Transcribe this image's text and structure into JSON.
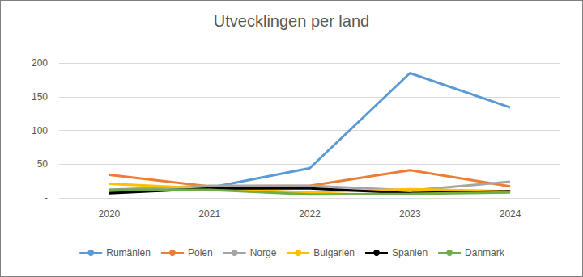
{
  "chart_data": {
    "type": "line",
    "title": "Utvecklingen per land",
    "categories": [
      "2020",
      "2021",
      "2022",
      "2023",
      "2024"
    ],
    "series": [
      {
        "name": "Rumänien",
        "color": "#5b9bd5",
        "values": [
          8,
          15,
          44,
          185,
          134
        ]
      },
      {
        "name": "Polen",
        "color": "#ed7d31",
        "values": [
          34,
          17,
          18,
          41,
          17
        ]
      },
      {
        "name": "Norge",
        "color": "#a5a5a5",
        "values": [
          12,
          18,
          18,
          11,
          24
        ]
      },
      {
        "name": "Bulgarien",
        "color": "#ffc000",
        "values": [
          21,
          14,
          8,
          13,
          10
        ]
      },
      {
        "name": "Spanien",
        "color": "#000000",
        "values": [
          7,
          14,
          14,
          7,
          10
        ]
      },
      {
        "name": "Danmark",
        "color": "#70ad47",
        "values": [
          12,
          12,
          5,
          6,
          8
        ]
      }
    ],
    "ylim": [
      0,
      200
    ],
    "yticks": [
      {
        "value": 0,
        "label": "-"
      },
      50,
      100,
      150,
      200
    ],
    "grid": true,
    "legend": "bottom"
  }
}
